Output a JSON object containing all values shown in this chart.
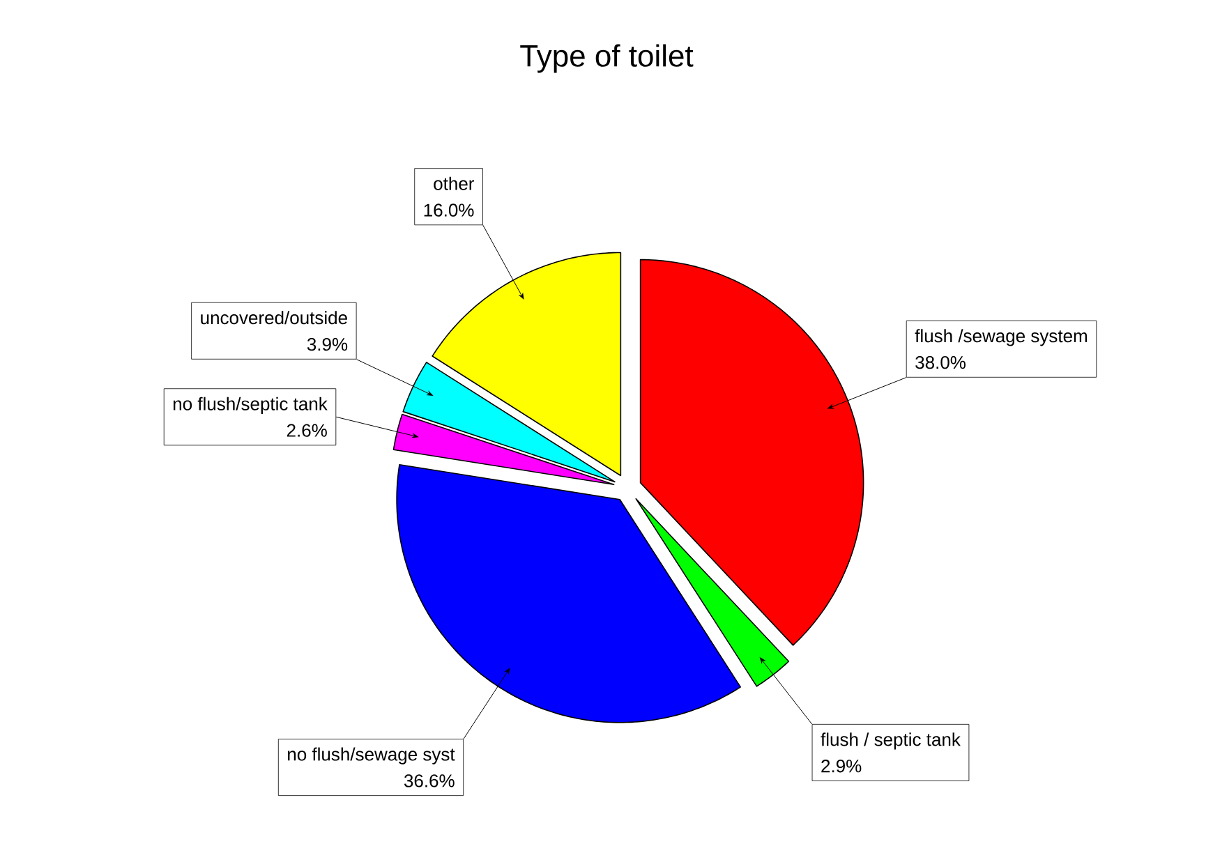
{
  "chart_data": {
    "type": "pie",
    "title": "Type of toilet",
    "categories": [
      "flush /sewage system",
      "flush / septic tank",
      "no flush/sewage syst",
      "no flush/septic tank",
      "uncovered/outside",
      "other"
    ],
    "values": [
      38.0,
      2.9,
      36.6,
      2.6,
      3.9,
      16.0
    ],
    "value_labels": [
      "38.0%",
      "2.9%",
      "36.6%",
      "2.6%",
      "3.9%",
      "16.0%"
    ],
    "colors": [
      "#ff0000",
      "#00ff00",
      "#0000ff",
      "#ff00ff",
      "#00ffff",
      "#ffff00"
    ]
  }
}
